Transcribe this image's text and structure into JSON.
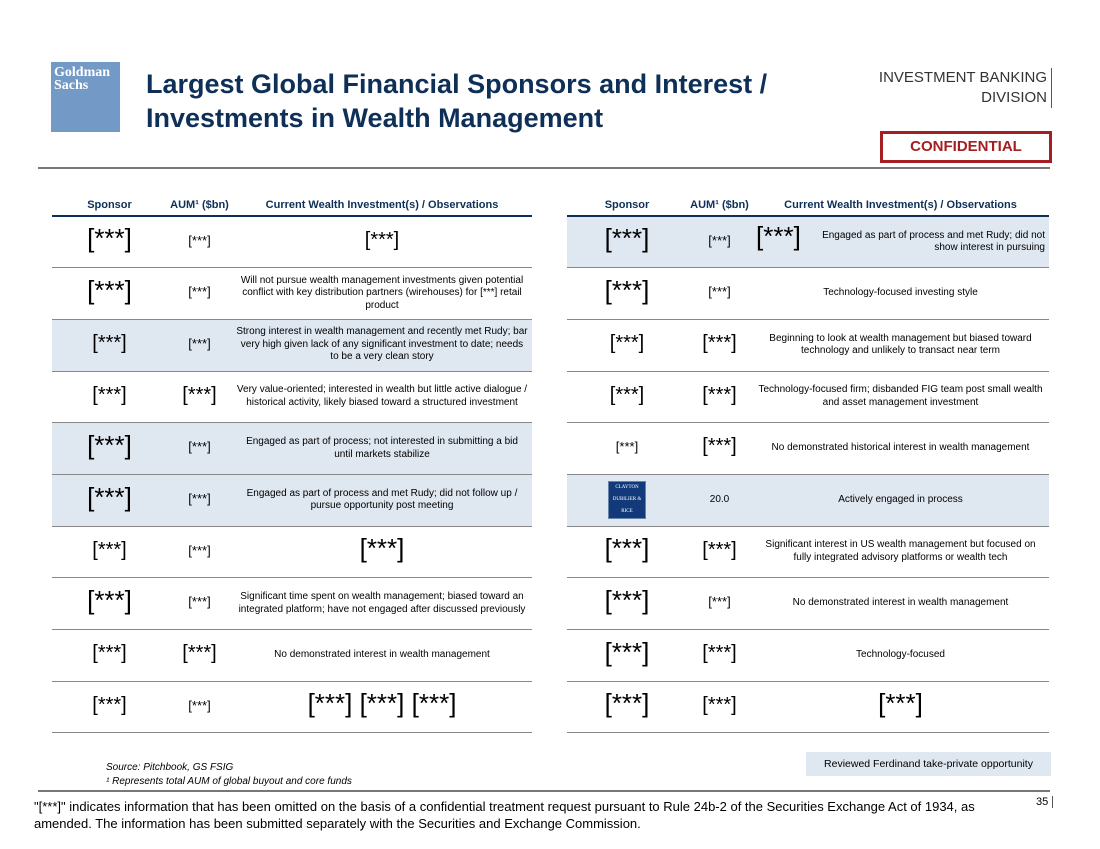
{
  "logo": "Goldman Sachs",
  "title_line1": "Largest Global Financial Sponsors and Interest /",
  "title_line2": "Investments in Wealth Management",
  "division_line1": "INVESTMENT BANKING",
  "division_line2": "DIVISION",
  "confidential": "CONFIDENTIAL",
  "headers": {
    "sponsor": "Sponsor",
    "aum": "AUM¹ ($bn)",
    "obs": "Current Wealth Investment(s) / Observations"
  },
  "left_rows": [
    {
      "sponsor": "[***]",
      "aum": "[***]",
      "obs": "[***]"
    },
    {
      "sponsor": "[***]",
      "aum": "[***]",
      "obs": "Will not pursue wealth management investments given potential conflict with key distribution partners (wirehouses) for [***] retail product"
    },
    {
      "sponsor": "[***]",
      "aum": "[***]",
      "obs": "Strong interest in wealth management and recently met Rudy; bar very high given lack of any significant investment to date; needs to be a very clean story"
    },
    {
      "sponsor": "[***]",
      "aum": "[***]",
      "obs": "Very value-oriented; interested in wealth but little active dialogue / historical activity, likely biased toward a structured investment"
    },
    {
      "sponsor": "[***]",
      "aum": "[***]",
      "obs": "Engaged as part of process; not interested in submitting a bid until markets stabilize"
    },
    {
      "sponsor": "[***]",
      "aum": "[***]",
      "obs": "Engaged as part of process and met Rudy; did not follow up / pursue opportunity post meeting"
    },
    {
      "sponsor": "[***]",
      "aum": "[***]",
      "obs": "[***]"
    },
    {
      "sponsor": "[***]",
      "aum": "[***]",
      "obs": "Significant time spent on wealth management; biased toward an integrated platform; have not engaged after discussed previously"
    },
    {
      "sponsor": "[***]",
      "aum": "[***]",
      "obs": "No demonstrated interest in wealth management"
    },
    {
      "sponsor": "[***]",
      "aum": "[***]",
      "obs": "[***]  [***] [***]"
    }
  ],
  "right_rows": [
    {
      "sponsor": "[***]",
      "aum": "[***]",
      "obs_redacted": "[***]",
      "obs": "Engaged as part of process and met Rudy; did not show interest in pursuing"
    },
    {
      "sponsor": "[***]",
      "aum": "[***]",
      "obs": "Technology-focused investing style"
    },
    {
      "sponsor": "[***]",
      "aum": "[***]",
      "obs": "Beginning to look at wealth management but biased toward technology and unlikely to transact near term"
    },
    {
      "sponsor": "[***]",
      "aum": "[***]",
      "obs": "Technology-focused firm; disbanded FIG team post small wealth and asset management investment"
    },
    {
      "sponsor": "[***]",
      "aum": "[***]",
      "obs": "No demonstrated historical interest in wealth management"
    },
    {
      "sponsor": "CLAYTON DUBILIER & RICE",
      "aum": "20.0",
      "obs": "Actively engaged in process"
    },
    {
      "sponsor": "[***]",
      "aum": "[***]",
      "obs": "Significant interest in US wealth management but focused on fully integrated advisory platforms or wealth tech"
    },
    {
      "sponsor": "[***]",
      "aum": "[***]",
      "obs": "No demonstrated interest in wealth management"
    },
    {
      "sponsor": "[***]",
      "aum": "[***]",
      "obs": "Technology-focused"
    },
    {
      "sponsor": "[***]",
      "aum": "[***]",
      "obs": "[***]"
    }
  ],
  "source": "Source: Pitchbook, GS FSIG",
  "footnote": "¹ Represents total AUM of global buyout and core funds",
  "reviewed": "Reviewed Ferdinand take-private opportunity",
  "disclaimer": "\"[***]\" indicates information that has been omitted on the basis of a confidential treatment request pursuant to Rule 24b-2 of the Securities Exchange Act of 1934, as amended. The information has been submitted separately with the Securities and Exchange Commission.",
  "page_number": "35",
  "colors": {
    "navy": "#0e2f57",
    "shade": "#dfe7f1",
    "confidential": "#a51e22"
  }
}
